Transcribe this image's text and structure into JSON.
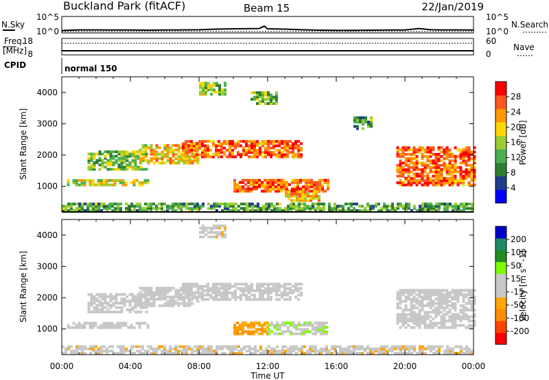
{
  "header": {
    "title": "Buckland Park (fitACF)",
    "beam": "Beam 15",
    "date": "22/Jan/2019"
  },
  "status_panel": {
    "nsky_label": "N.Sky",
    "nsearch_label": "N.Search",
    "freq_label": "Freq.",
    "freq_unit": "[MHz]",
    "nave_label": "Nave",
    "cpid_label": "CPID",
    "cpid_value": "normal 150",
    "noise_ticks": [
      "10^5",
      "10^0"
    ],
    "freq_ticks_left": [
      "18",
      "8"
    ],
    "nave_ticks_right": [
      "60",
      "0"
    ]
  },
  "colors": {
    "power_scale": [
      "#0000ff",
      "#1e3c8c",
      "#2e7d32",
      "#4caf50",
      "#9acd32",
      "#ffd700",
      "#ff9800",
      "#ff5722",
      "#ff0000"
    ],
    "velocity_scale": [
      "#ff0000",
      "#ff4500",
      "#ff8c00",
      "#ffa500",
      "#c8c8c8",
      "#c8c8c8",
      "#7cfc00",
      "#228b22",
      "#1e8c64",
      "#0000cd"
    ]
  },
  "chart_data": [
    {
      "type": "line",
      "panel": "noise",
      "x": [
        0,
        1,
        2,
        3,
        4,
        5,
        6,
        7,
        8,
        9,
        10,
        11,
        11.5,
        11.8,
        12,
        13,
        14,
        15,
        16,
        17,
        18,
        19,
        20,
        20.8,
        21.5,
        22,
        23,
        24
      ],
      "y": [
        0.35,
        0.55,
        0.55,
        0.5,
        0.5,
        0.45,
        0.5,
        0.55,
        0.6,
        0.8,
        0.9,
        0.95,
        1.0,
        1.8,
        0.9,
        0.8,
        0.6,
        0.45,
        0.4,
        0.4,
        0.45,
        0.5,
        0.5,
        1.0,
        0.6,
        0.55,
        0.55,
        0.5
      ],
      "ylim": [
        0,
        5
      ],
      "xlim": [
        0,
        24
      ]
    },
    {
      "type": "heatmap",
      "panel": "power",
      "ylabel": "Slant Range [km]",
      "colorbar_label": "Power [dB]",
      "colorbar_ticks": [
        "28",
        "24",
        "20",
        "16",
        "12",
        "8",
        "4"
      ],
      "colorbar_range": [
        0,
        32
      ],
      "yticks": [
        "1000",
        "2000",
        "3000",
        "4000"
      ],
      "ylim": [
        180,
        4500
      ],
      "xlim": [
        0,
        24
      ],
      "regions": [
        {
          "t0": 0,
          "t1": 24,
          "r0": 180,
          "r1": 450,
          "level": 12
        },
        {
          "t0": 0.3,
          "t1": 5,
          "r0": 1000,
          "r1": 1150,
          "level": 18
        },
        {
          "t0": 1.5,
          "t1": 5,
          "r0": 1500,
          "r1": 2100,
          "level": 14
        },
        {
          "t0": 4.5,
          "t1": 8,
          "r0": 1700,
          "r1": 2300,
          "level": 20
        },
        {
          "t0": 7,
          "t1": 14,
          "r0": 1900,
          "r1": 2400,
          "level": 26
        },
        {
          "t0": 10,
          "t1": 15.5,
          "r0": 800,
          "r1": 1200,
          "level": 26
        },
        {
          "t0": 13,
          "t1": 15,
          "r0": 500,
          "r1": 800,
          "level": 22
        },
        {
          "t0": 8,
          "t1": 9.5,
          "r0": 3900,
          "r1": 4300,
          "level": 16
        },
        {
          "t0": 11,
          "t1": 12.5,
          "r0": 3600,
          "r1": 4000,
          "level": 14
        },
        {
          "t0": 19.5,
          "t1": 24,
          "r0": 1000,
          "r1": 2200,
          "level": 26
        },
        {
          "t0": 17,
          "t1": 18,
          "r0": 2800,
          "r1": 3200,
          "level": 12
        }
      ]
    },
    {
      "type": "heatmap",
      "panel": "velocity",
      "ylabel": "Slant Range [km]",
      "colorbar_label": "Velocity [m s^-1]",
      "colorbar_ticks": [
        "200",
        "100",
        "50",
        "15",
        "-15",
        "-50",
        "-100",
        "-200"
      ],
      "colorbar_range": [
        -250,
        250
      ],
      "yticks": [
        "1000",
        "2000",
        "3000",
        "4000"
      ],
      "ylim": [
        180,
        4500
      ],
      "xlim": [
        0,
        24
      ],
      "regions": [
        {
          "t0": 0,
          "t1": 24,
          "r0": 180,
          "r1": 400,
          "level": -30
        },
        {
          "t0": 0.3,
          "t1": 5,
          "r0": 1000,
          "r1": 1150,
          "level": 0
        },
        {
          "t0": 1.5,
          "t1": 5,
          "r0": 1500,
          "r1": 2100,
          "level": 0
        },
        {
          "t0": 4.5,
          "t1": 8,
          "r0": 1700,
          "r1": 2300,
          "level": 0
        },
        {
          "t0": 7,
          "t1": 14,
          "r0": 1900,
          "r1": 2400,
          "level": -20
        },
        {
          "t0": 10,
          "t1": 12,
          "r0": 800,
          "r1": 1200,
          "level": -90
        },
        {
          "t0": 12,
          "t1": 15.5,
          "r0": 800,
          "r1": 1200,
          "level": 40
        },
        {
          "t0": 8,
          "t1": 9.5,
          "r0": 3900,
          "r1": 4300,
          "level": -30
        },
        {
          "t0": 19.5,
          "t1": 24,
          "r0": 1000,
          "r1": 2200,
          "level": 0
        }
      ]
    }
  ],
  "xaxis": {
    "label": "Time UT",
    "ticks": [
      "00:00",
      "04:00",
      "08:00",
      "12:00",
      "16:00",
      "20:00",
      "00:00"
    ]
  }
}
